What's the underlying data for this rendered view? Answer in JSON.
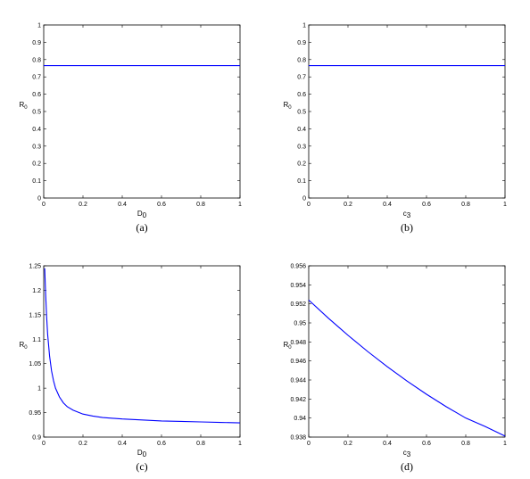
{
  "chart_data": [
    {
      "id": "a",
      "type": "line",
      "caption": "(a)",
      "xlabel": "D",
      "xlabel_sub": "0",
      "ylabel": "R",
      "ylabel_sub": "0",
      "xlim": [
        0,
        1
      ],
      "ylim": [
        0,
        1
      ],
      "xticks": [
        0,
        0.2,
        0.4,
        0.6,
        0.8,
        1
      ],
      "xtick_labels": [
        "0",
        "0.2",
        "0.4",
        "0.6",
        "0.8",
        "1"
      ],
      "yticks": [
        0,
        0.1,
        0.2,
        0.3,
        0.4,
        0.5,
        0.6,
        0.7,
        0.8,
        0.9,
        1
      ],
      "ytick_labels": [
        "0",
        "0.1",
        "0.2",
        "0.3",
        "0.4",
        "0.5",
        "0.6",
        "0.7",
        "0.8",
        "0.9",
        "1"
      ],
      "grid": false,
      "line_color": "#0000ff",
      "series": [
        {
          "x": [
            0,
            1
          ],
          "y": [
            0.765,
            0.765
          ]
        }
      ]
    },
    {
      "id": "b",
      "type": "line",
      "caption": "(b)",
      "xlabel": "c",
      "xlabel_sub": "3",
      "ylabel": "R",
      "ylabel_sub": "0",
      "xlim": [
        0,
        1
      ],
      "ylim": [
        0,
        1
      ],
      "xticks": [
        0,
        0.2,
        0.4,
        0.6,
        0.8,
        1
      ],
      "xtick_labels": [
        "0",
        "0.2",
        "0.4",
        "0.6",
        "0.8",
        "1"
      ],
      "yticks": [
        0,
        0.1,
        0.2,
        0.3,
        0.4,
        0.5,
        0.6,
        0.7,
        0.8,
        0.9,
        1
      ],
      "ytick_labels": [
        "0",
        "0.1",
        "0.2",
        "0.3",
        "0.4",
        "0.5",
        "0.6",
        "0.7",
        "0.8",
        "0.9",
        "1"
      ],
      "grid": false,
      "line_color": "#0000ff",
      "series": [
        {
          "x": [
            0,
            1
          ],
          "y": [
            0.765,
            0.765
          ]
        }
      ]
    },
    {
      "id": "c",
      "type": "line",
      "caption": "(c)",
      "xlabel": "D",
      "xlabel_sub": "0",
      "ylabel": "R",
      "ylabel_sub": "0",
      "xlim": [
        0,
        1
      ],
      "ylim": [
        0.9,
        1.25
      ],
      "xticks": [
        0,
        0.2,
        0.4,
        0.6,
        0.8,
        1
      ],
      "xtick_labels": [
        "0",
        "0.2",
        "0.4",
        "0.6",
        "0.8",
        "1"
      ],
      "yticks": [
        0.9,
        0.95,
        1,
        1.05,
        1.1,
        1.15,
        1.2,
        1.25
      ],
      "ytick_labels": [
        "0.9",
        "0.95",
        "1",
        "1.05",
        "1.1",
        "1.15",
        "1.2",
        "1.25"
      ],
      "grid": false,
      "line_color": "#0000ff",
      "series": [
        {
          "x": [
            0.005,
            0.01,
            0.015,
            0.02,
            0.03,
            0.04,
            0.05,
            0.06,
            0.08,
            0.1,
            0.12,
            0.15,
            0.2,
            0.25,
            0.3,
            0.4,
            0.5,
            0.6,
            0.7,
            0.8,
            0.9,
            1.0
          ],
          "y": [
            1.245,
            1.19,
            1.145,
            1.11,
            1.065,
            1.035,
            1.015,
            1.0,
            0.982,
            0.97,
            0.962,
            0.955,
            0.947,
            0.943,
            0.94,
            0.937,
            0.935,
            0.933,
            0.932,
            0.931,
            0.93,
            0.929
          ]
        }
      ]
    },
    {
      "id": "d",
      "type": "line",
      "caption": "(d)",
      "xlabel": "c",
      "xlabel_sub": "3",
      "ylabel": "R",
      "ylabel_sub": "0",
      "xlim": [
        0,
        1
      ],
      "ylim": [
        0.938,
        0.956
      ],
      "xticks": [
        0,
        0.2,
        0.4,
        0.6,
        0.8,
        1
      ],
      "xtick_labels": [
        "0",
        "0.2",
        "0.4",
        "0.6",
        "0.8",
        "1"
      ],
      "yticks": [
        0.938,
        0.94,
        0.942,
        0.944,
        0.946,
        0.948,
        0.95,
        0.952,
        0.954,
        0.956
      ],
      "ytick_labels": [
        "0.938",
        "0.94",
        "0.942",
        "0.944",
        "0.946",
        "0.948",
        "0.95",
        "0.952",
        "0.954",
        "0.956"
      ],
      "grid": false,
      "line_color": "#0000ff",
      "series": [
        {
          "x": [
            0,
            0.1,
            0.2,
            0.3,
            0.4,
            0.5,
            0.6,
            0.7,
            0.8,
            0.9,
            1.0
          ],
          "y": [
            0.9524,
            0.9505,
            0.9487,
            0.947,
            0.9454,
            0.9439,
            0.9425,
            0.9412,
            0.94,
            0.9391,
            0.9381
          ]
        }
      ]
    }
  ]
}
